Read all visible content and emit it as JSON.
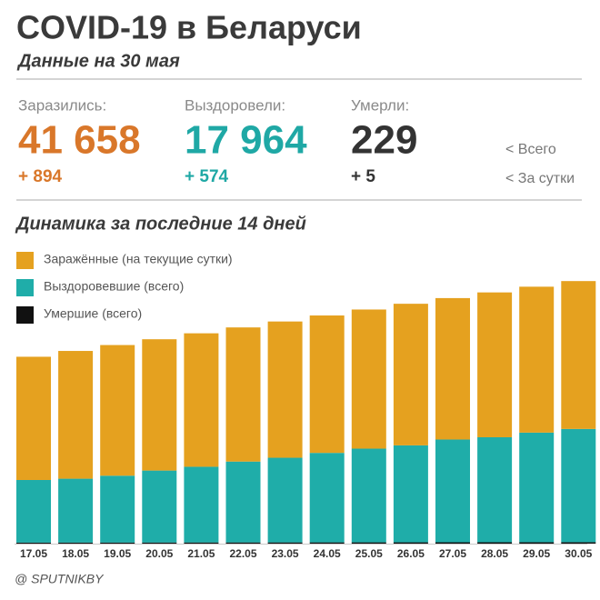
{
  "header": {
    "title": "COVID-19 в Беларуси",
    "subtitle": "Данные на 30 мая"
  },
  "stats": [
    {
      "label": "Заразились:",
      "total": "41 658",
      "daily": "+ 894",
      "color": "#d9772a"
    },
    {
      "label": "Выздоровели:",
      "total": "17 964",
      "daily": "+ 574",
      "color": "#1fa8a5"
    },
    {
      "label": "Умерли:",
      "total": "229",
      "daily": "+ 5",
      "color": "#333333"
    }
  ],
  "hints": {
    "total": "<  Всего",
    "daily": "<  За сутки"
  },
  "chart_data": {
    "type": "stacked_bar",
    "title": "Динамика за последние 14 дней",
    "categories": [
      "17.05",
      "18.05",
      "19.05",
      "20.05",
      "21.05",
      "22.05",
      "23.05",
      "24.05",
      "25.05",
      "26.05",
      "27.05",
      "28.05",
      "29.05",
      "30.05"
    ],
    "series": [
      {
        "name": "Заражённые (на текущие сутки)",
        "color": "#e5a11f",
        "values": [
          19553,
          20271,
          20730,
          20832,
          21176,
          21280,
          21618,
          21801,
          22074,
          22466,
          22439,
          22982,
          23150,
          23465
        ]
      },
      {
        "name": "Выздоровевшие (всего)",
        "color": "#1fada9",
        "values": [
          9932,
          10130,
          10603,
          11415,
          12010,
          12833,
          13432,
          14198,
          14866,
          15382,
          16303,
          16657,
          17390,
          17964
        ]
      },
      {
        "name": "Умершие (всего)",
        "color": "#111111",
        "values": [
          165,
          171,
          175,
          179,
          185,
          190,
          194,
          199,
          204,
          208,
          214,
          219,
          224,
          229
        ]
      }
    ],
    "ylim": [
      0,
      45000
    ]
  },
  "footer": "@ SPUTNIKBY"
}
